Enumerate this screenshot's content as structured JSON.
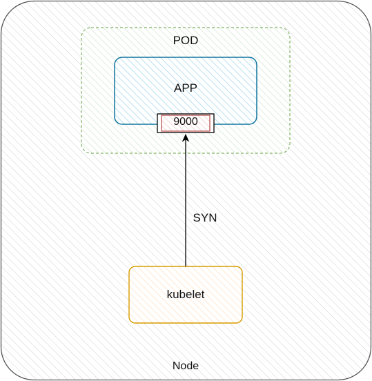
{
  "node": {
    "label": "Node"
  },
  "pod": {
    "label": "POD"
  },
  "app": {
    "label": "APP",
    "port": "9000"
  },
  "edge": {
    "label": "SYN"
  },
  "kubelet": {
    "label": "kubelet"
  },
  "colors": {
    "node_stroke": "#555555",
    "pod_stroke": "#82b366",
    "pod_fill": "#d5e8d4",
    "app_stroke": "#10739e",
    "app_fill": "#b1ddf0",
    "port_stroke": "#b85450",
    "port_fill": "#f8cecc",
    "kubelet_stroke": "#d79b00",
    "kubelet_fill": "#ffe6cc",
    "edge_stroke": "#000000"
  }
}
